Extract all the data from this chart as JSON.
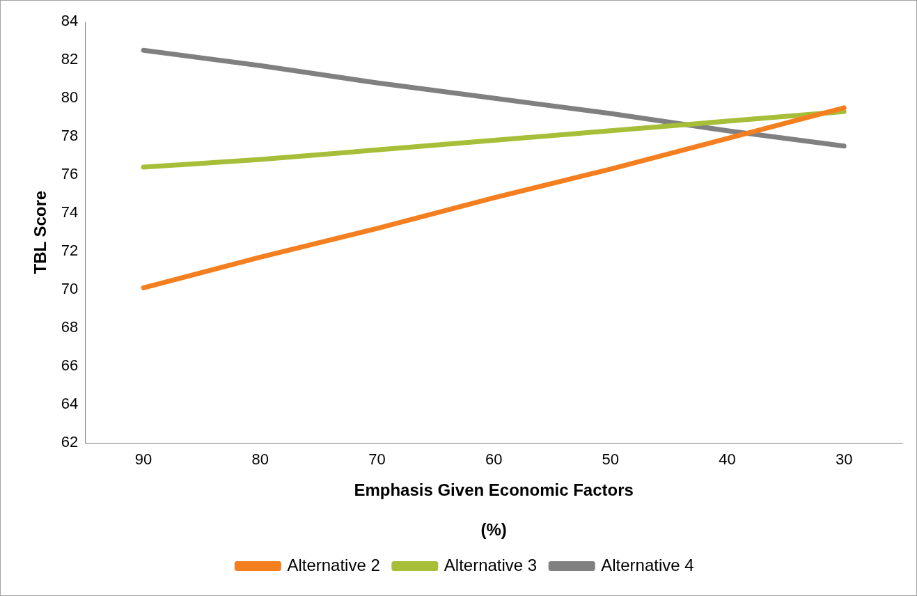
{
  "chart_data": {
    "type": "line",
    "xlabel": "Emphasis Given Economic Factors\n\n(%)",
    "ylabel": "TBL Score",
    "categories": [
      "90",
      "80",
      "70",
      "60",
      "50",
      "40",
      "30"
    ],
    "series": [
      {
        "name": "Alternative 2",
        "color": "#f47f20",
        "values": [
          70.1,
          71.7,
          73.2,
          74.8,
          76.3,
          77.9,
          79.5
        ]
      },
      {
        "name": "Alternative 3",
        "color": "#a6be38",
        "values": [
          76.4,
          76.8,
          77.3,
          77.8,
          78.3,
          78.8,
          79.3
        ]
      },
      {
        "name": "Alternative 4",
        "color": "#808080",
        "values": [
          82.5,
          81.7,
          80.8,
          80.0,
          79.2,
          78.3,
          77.5
        ]
      }
    ],
    "ylim": [
      62,
      84
    ],
    "yticks": [
      62,
      64,
      66,
      68,
      70,
      72,
      74,
      76,
      78,
      80,
      82,
      84
    ],
    "grid": false,
    "legend": "bottom",
    "marker": "none",
    "line_style": "solid"
  }
}
